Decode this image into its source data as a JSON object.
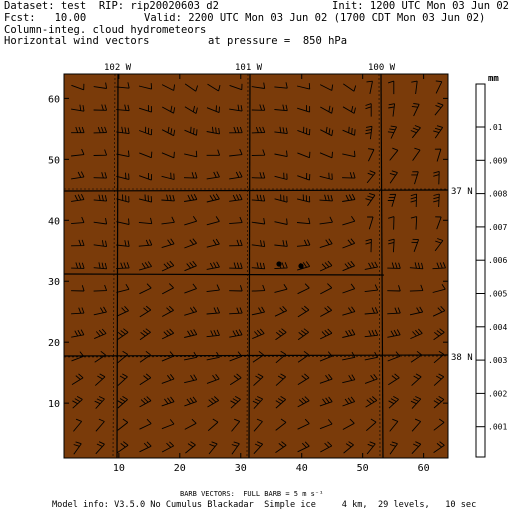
{
  "header": {
    "dataset_line": "Dataset: test  RIP: rip20020603 d2",
    "init_line": "Init: 1200 UTC Mon 03 Jun 02",
    "fcst_line": "Fcst:   10.00",
    "valid_line": "Valid: 2200 UTC Mon 03 Jun 02 (1700 CDT Mon 03 Jun 02)",
    "field1": "Column-integ. cloud hydrometeors",
    "field2": "Horizontal wind vectors",
    "pressure_line": "at pressure =  850 hPa"
  },
  "map": {
    "background_color": "#7a3b0a",
    "x_ticks": [
      10,
      20,
      30,
      40,
      50,
      60
    ],
    "y_ticks": [
      10,
      20,
      30,
      40,
      50,
      60
    ],
    "x_range": [
      1,
      64
    ],
    "y_range": [
      1,
      64
    ],
    "lon_labels": [
      "102 W",
      "101 W",
      "100 W"
    ],
    "lat_labels": [
      "37 N",
      "38 N"
    ]
  },
  "colorbar": {
    "unit": "mm",
    "labels": [
      ".01",
      ".009",
      ".008",
      ".007",
      ".006",
      ".005",
      ".004",
      ".003",
      ".002",
      ".001"
    ]
  },
  "footer": {
    "barb_line": "BARB VECTORS:  FULL BARB = 5 m s⁻¹",
    "model_line": "Model info: V3.5.0 No Cumulus Blackadar  Simple ice     4 km,  29 levels,   10 sec"
  }
}
